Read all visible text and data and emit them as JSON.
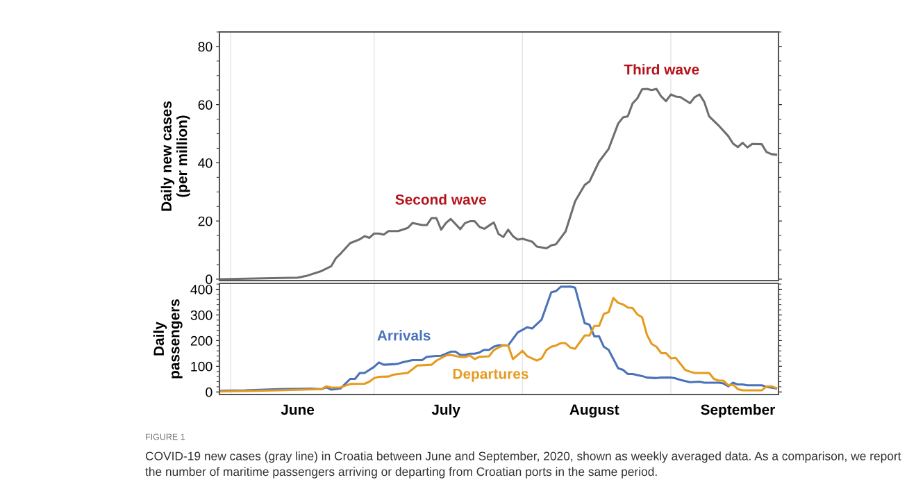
{
  "chart_data": [
    {
      "type": "line",
      "ylabel": "Daily new cases\n(per million)",
      "xlim": [
        "2020-05-29T16:00",
        "2020-09-23T12:00"
      ],
      "ylim": [
        -0.5,
        85
      ],
      "yticks": [
        0,
        20,
        40,
        60,
        80
      ],
      "xticks": [
        {
          "value": "2020-06-01",
          "label": null
        },
        {
          "value": "2020-07-01",
          "label": null
        },
        {
          "value": "2020-08-01",
          "label": null
        },
        {
          "value": "2020-09-01",
          "label": null
        }
      ],
      "grid": "x",
      "tick_labels": "y",
      "annotations": [
        "Second wave",
        "Third wave"
      ],
      "series": [
        {
          "color": "#6e6e6e",
          "x": [
            "2020-05-30",
            "2020-06-15",
            "2020-06-17",
            "2020-06-20",
            "2020-06-22",
            "2020-06-23",
            "2020-06-24",
            "2020-06-26",
            "2020-06-28",
            "2020-06-29",
            "2020-06-30",
            "2020-07-01",
            "2020-07-02",
            "2020-07-03",
            "2020-07-04",
            "2020-07-06",
            "2020-07-08",
            "2020-07-09",
            "2020-07-11",
            "2020-07-12",
            "2020-07-13",
            "2020-07-14",
            "2020-07-15",
            "2020-07-16",
            "2020-07-17",
            "2020-07-19",
            "2020-07-20",
            "2020-07-21",
            "2020-07-22",
            "2020-07-23",
            "2020-07-24",
            "2020-07-25",
            "2020-07-26",
            "2020-07-27",
            "2020-07-28",
            "2020-07-29",
            "2020-07-30",
            "2020-07-31",
            "2020-08-01",
            "2020-08-03",
            "2020-08-04",
            "2020-08-06",
            "2020-08-07",
            "2020-08-08",
            "2020-08-10",
            "2020-08-12",
            "2020-08-14",
            "2020-08-15",
            "2020-08-17",
            "2020-08-19",
            "2020-08-21",
            "2020-08-22",
            "2020-08-23",
            "2020-08-24",
            "2020-08-25",
            "2020-08-26",
            "2020-08-27",
            "2020-08-28",
            "2020-08-29",
            "2020-08-30",
            "2020-08-31",
            "2020-09-01",
            "2020-09-02",
            "2020-09-03",
            "2020-09-05",
            "2020-09-06",
            "2020-09-07",
            "2020-09-08",
            "2020-09-09",
            "2020-09-11",
            "2020-09-13",
            "2020-09-14",
            "2020-09-15",
            "2020-09-16",
            "2020-09-17",
            "2020-09-18",
            "2020-09-20",
            "2020-09-21",
            "2020-09-22",
            "2020-09-23"
          ],
          "values": [
            0,
            0.5,
            1.2,
            2.8,
            4.4,
            7.2,
            8.8,
            12.4,
            13.7,
            14.8,
            14.2,
            15.7,
            15.7,
            15.3,
            16.5,
            16.5,
            17.6,
            19.3,
            18.6,
            18.6,
            21,
            21,
            17,
            19.3,
            20.7,
            17.2,
            19.3,
            19.9,
            19.9,
            18,
            17.3,
            18.4,
            19.5,
            15.5,
            14.5,
            17,
            14.8,
            13.6,
            13.9,
            12.9,
            11.2,
            10.6,
            11.6,
            12,
            16.4,
            26.8,
            32.4,
            33.6,
            40.4,
            44.8,
            53.5,
            55.6,
            56,
            60.4,
            62.2,
            65.3,
            65.4,
            65,
            65.4,
            62.8,
            61.2,
            63.5,
            62.8,
            62.6,
            60.5,
            62.6,
            63.5,
            60.9,
            56,
            52.8,
            49.2,
            46.6,
            45.4,
            46.9,
            45.3,
            46.5,
            46.4,
            43.7,
            43,
            42.8
          ]
        }
      ]
    },
    {
      "type": "line",
      "ylabel": "Daily\npassengers",
      "xlim": [
        "2020-05-29T16:00",
        "2020-09-23T12:00"
      ],
      "ylim": [
        -10,
        423
      ],
      "yticks": [
        0,
        100,
        200,
        300,
        400
      ],
      "xticks": [
        {
          "value": "2020-06-01",
          "label": null
        },
        {
          "value": "2020-06-15",
          "label": "June"
        },
        {
          "value": "2020-07-01",
          "label": null
        },
        {
          "value": "2020-07-16",
          "label": "July"
        },
        {
          "value": "2020-08-01",
          "label": null
        },
        {
          "value": "2020-08-16",
          "label": "August"
        },
        {
          "value": "2020-09-01",
          "label": null
        },
        {
          "value": "2020-09-15",
          "label": "September"
        }
      ],
      "grid": "x",
      "annotations": [
        "FIGURE 1",
        "COVID-19 new cases (gray line) in Croatia between June and September, 2020, shown as weekly averaged data. As a comparison, we report the number of maritime passengers arriving or departing from Croatian ports in the same period."
      ],
      "series": [
        {
          "name": "Arrivals",
          "color": "#4a72b8",
          "x": [
            "2020-05-30",
            "2020-06-04",
            "2020-06-11",
            "2020-06-18",
            "2020-06-20",
            "2020-06-21",
            "2020-06-22",
            "2020-06-24",
            "2020-06-26",
            "2020-06-27",
            "2020-06-28",
            "2020-06-29",
            "2020-07-01",
            "2020-07-02",
            "2020-07-03",
            "2020-07-05",
            "2020-07-06",
            "2020-07-07",
            "2020-07-09",
            "2020-07-11",
            "2020-07-12",
            "2020-07-14",
            "2020-07-15",
            "2020-07-17",
            "2020-07-18",
            "2020-07-19",
            "2020-07-20",
            "2020-07-21",
            "2020-07-22",
            "2020-07-23",
            "2020-07-24",
            "2020-07-25",
            "2020-07-26",
            "2020-07-27",
            "2020-07-29",
            "2020-07-31",
            "2020-08-02",
            "2020-08-03",
            "2020-08-05",
            "2020-08-07",
            "2020-08-08",
            "2020-08-09",
            "2020-08-10",
            "2020-08-11",
            "2020-08-12",
            "2020-08-14",
            "2020-08-15",
            "2020-08-16",
            "2020-08-17",
            "2020-08-18",
            "2020-08-19",
            "2020-08-21",
            "2020-08-22",
            "2020-08-23",
            "2020-08-24",
            "2020-08-26",
            "2020-08-27",
            "2020-08-29",
            "2020-08-30",
            "2020-09-01",
            "2020-09-02",
            "2020-09-03",
            "2020-09-05",
            "2020-09-07",
            "2020-09-08",
            "2020-09-11",
            "2020-09-12",
            "2020-09-13",
            "2020-09-14",
            "2020-09-15",
            "2020-09-16",
            "2020-09-17",
            "2020-09-20",
            "2020-09-21",
            "2020-09-23"
          ],
          "values": [
            5,
            6,
            11,
            13,
            11,
            18,
            9,
            14,
            51,
            51,
            74,
            74,
            98,
            115,
            106,
            108,
            110,
            116,
            124,
            124,
            137,
            140,
            141,
            157,
            157,
            144,
            144,
            149,
            149,
            154,
            164,
            164,
            176,
            182,
            181,
            232,
            252,
            247,
            282,
            388,
            393,
            410,
            410,
            411,
            406,
            268,
            262,
            217,
            217,
            176,
            164,
            92,
            86,
            70,
            70,
            62,
            56,
            54,
            56,
            56,
            53,
            47,
            38,
            40,
            36,
            36,
            33,
            22,
            36,
            29,
            29,
            26,
            26,
            20,
            14
          ]
        },
        {
          "name": "Departures",
          "color": "#e69a1e",
          "x": [
            "2020-05-30",
            "2020-06-06",
            "2020-06-11",
            "2020-06-20",
            "2020-06-21",
            "2020-06-22",
            "2020-06-24",
            "2020-06-26",
            "2020-06-29",
            "2020-06-30",
            "2020-07-01",
            "2020-07-02",
            "2020-07-04",
            "2020-07-05",
            "2020-07-06",
            "2020-07-08",
            "2020-07-10",
            "2020-07-13",
            "2020-07-14",
            "2020-07-16",
            "2020-07-17",
            "2020-07-19",
            "2020-07-20",
            "2020-07-21",
            "2020-07-22",
            "2020-07-23",
            "2020-07-25",
            "2020-07-26",
            "2020-07-27",
            "2020-07-28",
            "2020-07-29",
            "2020-07-30",
            "2020-08-01",
            "2020-08-02",
            "2020-08-04",
            "2020-08-05",
            "2020-08-06",
            "2020-08-07",
            "2020-08-08",
            "2020-08-09",
            "2020-08-10",
            "2020-08-11",
            "2020-08-12",
            "2020-08-14",
            "2020-08-15",
            "2020-08-16",
            "2020-08-17",
            "2020-08-18",
            "2020-08-19",
            "2020-08-20",
            "2020-08-21",
            "2020-08-22",
            "2020-08-23",
            "2020-08-24",
            "2020-08-25",
            "2020-08-26",
            "2020-08-27",
            "2020-08-28",
            "2020-08-29",
            "2020-08-30",
            "2020-08-31",
            "2020-09-01",
            "2020-09-02",
            "2020-09-04",
            "2020-09-05",
            "2020-09-06",
            "2020-09-09",
            "2020-09-10",
            "2020-09-11",
            "2020-09-12",
            "2020-09-13",
            "2020-09-14",
            "2020-09-15",
            "2020-09-16",
            "2020-09-20",
            "2020-09-21",
            "2020-09-22",
            "2020-09-23"
          ],
          "values": [
            2,
            4,
            6,
            11,
            22,
            17,
            18,
            31,
            32,
            40,
            54,
            59,
            60,
            67,
            70,
            74,
            103,
            106,
            122,
            142,
            144,
            136,
            136,
            142,
            128,
            137,
            139,
            163,
            173,
            182,
            181,
            128,
            160,
            139,
            122,
            131,
            163,
            176,
            181,
            190,
            190,
            173,
            168,
            220,
            220,
            257,
            257,
            304,
            311,
            366,
            347,
            341,
            329,
            327,
            302,
            291,
            223,
            187,
            176,
            151,
            151,
            131,
            133,
            86,
            79,
            74,
            74,
            51,
            44,
            44,
            26,
            28,
            11,
            6,
            6,
            22,
            22,
            15
          ]
        }
      ]
    }
  ]
}
